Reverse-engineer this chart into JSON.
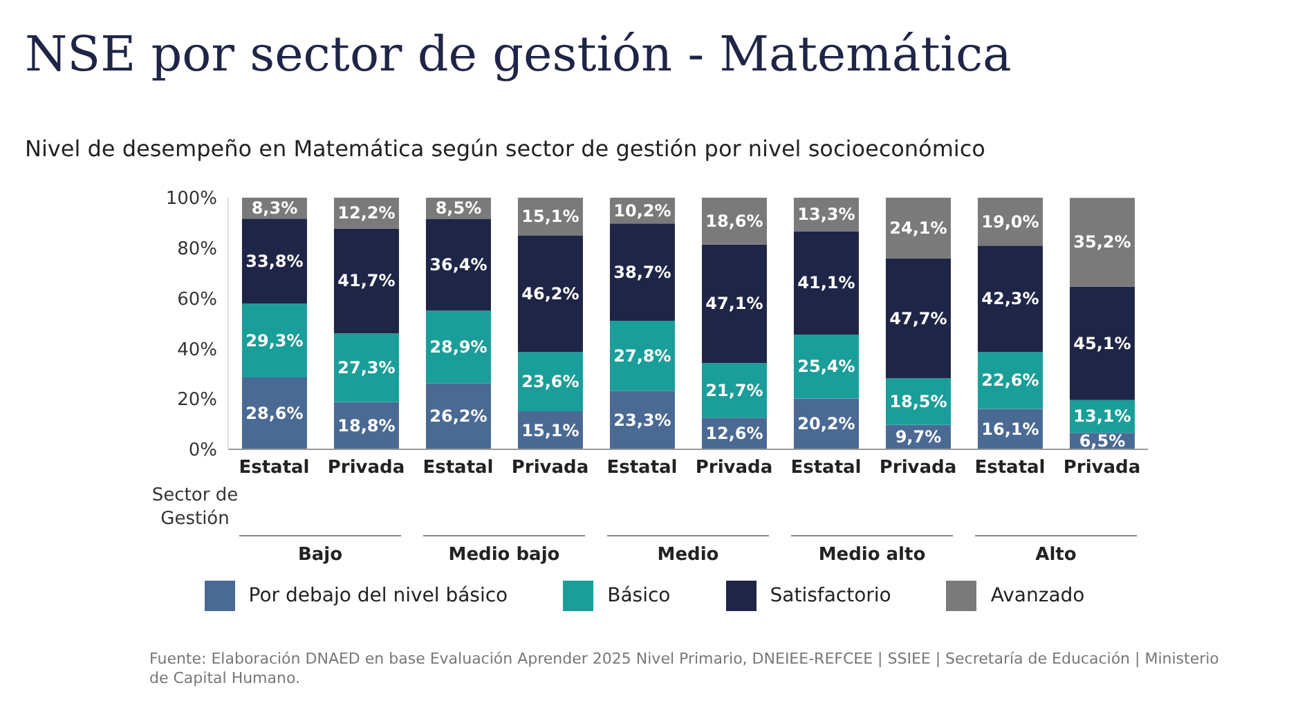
{
  "chart_data": {
    "type": "bar",
    "stacked": true,
    "title": "NSE por sector de gestión - Matemática",
    "subtitle": "Nivel de desempeño en Matemática según sector de gestión por nivel socioeconómico",
    "categories": [
      "Estatal",
      "Privada",
      "Estatal",
      "Privada",
      "Estatal",
      "Privada",
      "Estatal",
      "Privada",
      "Estatal",
      "Privada"
    ],
    "ylim": [
      0,
      100
    ],
    "yticks": [
      {
        "value": 0,
        "label": "0%"
      },
      {
        "value": 20,
        "label": "20%"
      },
      {
        "value": 40,
        "label": "40%"
      },
      {
        "value": 60,
        "label": "60%"
      },
      {
        "value": 80,
        "label": "80%"
      },
      {
        "value": 100,
        "label": "100%"
      }
    ],
    "legend": "bottom",
    "grid": false,
    "series": [
      {
        "name": "Por debajo del nivel básico",
        "color": "#4a6a94",
        "values": [
          28.6,
          18.8,
          26.2,
          15.1,
          23.3,
          12.6,
          20.2,
          9.7,
          16.1,
          6.5
        ],
        "value_labels": [
          "28,6%",
          "18,8%",
          "26,2%",
          "15,1%",
          "23,3%",
          "12,6%",
          "20,2%",
          "9,7%",
          "16,1%",
          "6,5%"
        ]
      },
      {
        "name": "Básico",
        "color": "#1a9e99",
        "values": [
          29.3,
          27.3,
          28.9,
          23.6,
          27.8,
          21.7,
          25.4,
          18.5,
          22.6,
          13.1
        ],
        "value_labels": [
          "29,3%",
          "27,3%",
          "28,9%",
          "23,6%",
          "27,8%",
          "21,7%",
          "25,4%",
          "18,5%",
          "22,6%",
          "13,1%"
        ]
      },
      {
        "name": "Satisfactorio",
        "color": "#1f2547",
        "values": [
          33.8,
          41.7,
          36.4,
          46.2,
          38.7,
          47.1,
          41.1,
          47.7,
          42.3,
          45.1
        ],
        "value_labels": [
          "33,8%",
          "41,7%",
          "36,4%",
          "46,2%",
          "38,7%",
          "47,1%",
          "41,1%",
          "47,7%",
          "42,3%",
          "45,1%"
        ]
      },
      {
        "name": "Avanzado",
        "color": "#7a7a7a",
        "values": [
          8.3,
          12.2,
          8.5,
          15.1,
          10.2,
          18.6,
          13.3,
          24.1,
          19.0,
          35.2
        ],
        "value_labels": [
          "8,3%",
          "12,2%",
          "8,5%",
          "15,1%",
          "10,2%",
          "18,6%",
          "13,3%",
          "24,1%",
          "19,0%",
          "35,2%"
        ]
      }
    ],
    "annotations": [
      "Sector de Gestión",
      "Bajo",
      "Medio bajo",
      "Medio",
      "Medio alto",
      "Alto",
      "Fuente: Elaboración DNAED en base Evaluación Aprender 2025 Nivel Primario, DNEIEE-REFCEE | SSIEE | Secretaría de Educación | Ministerio de Capital Humano."
    ]
  }
}
